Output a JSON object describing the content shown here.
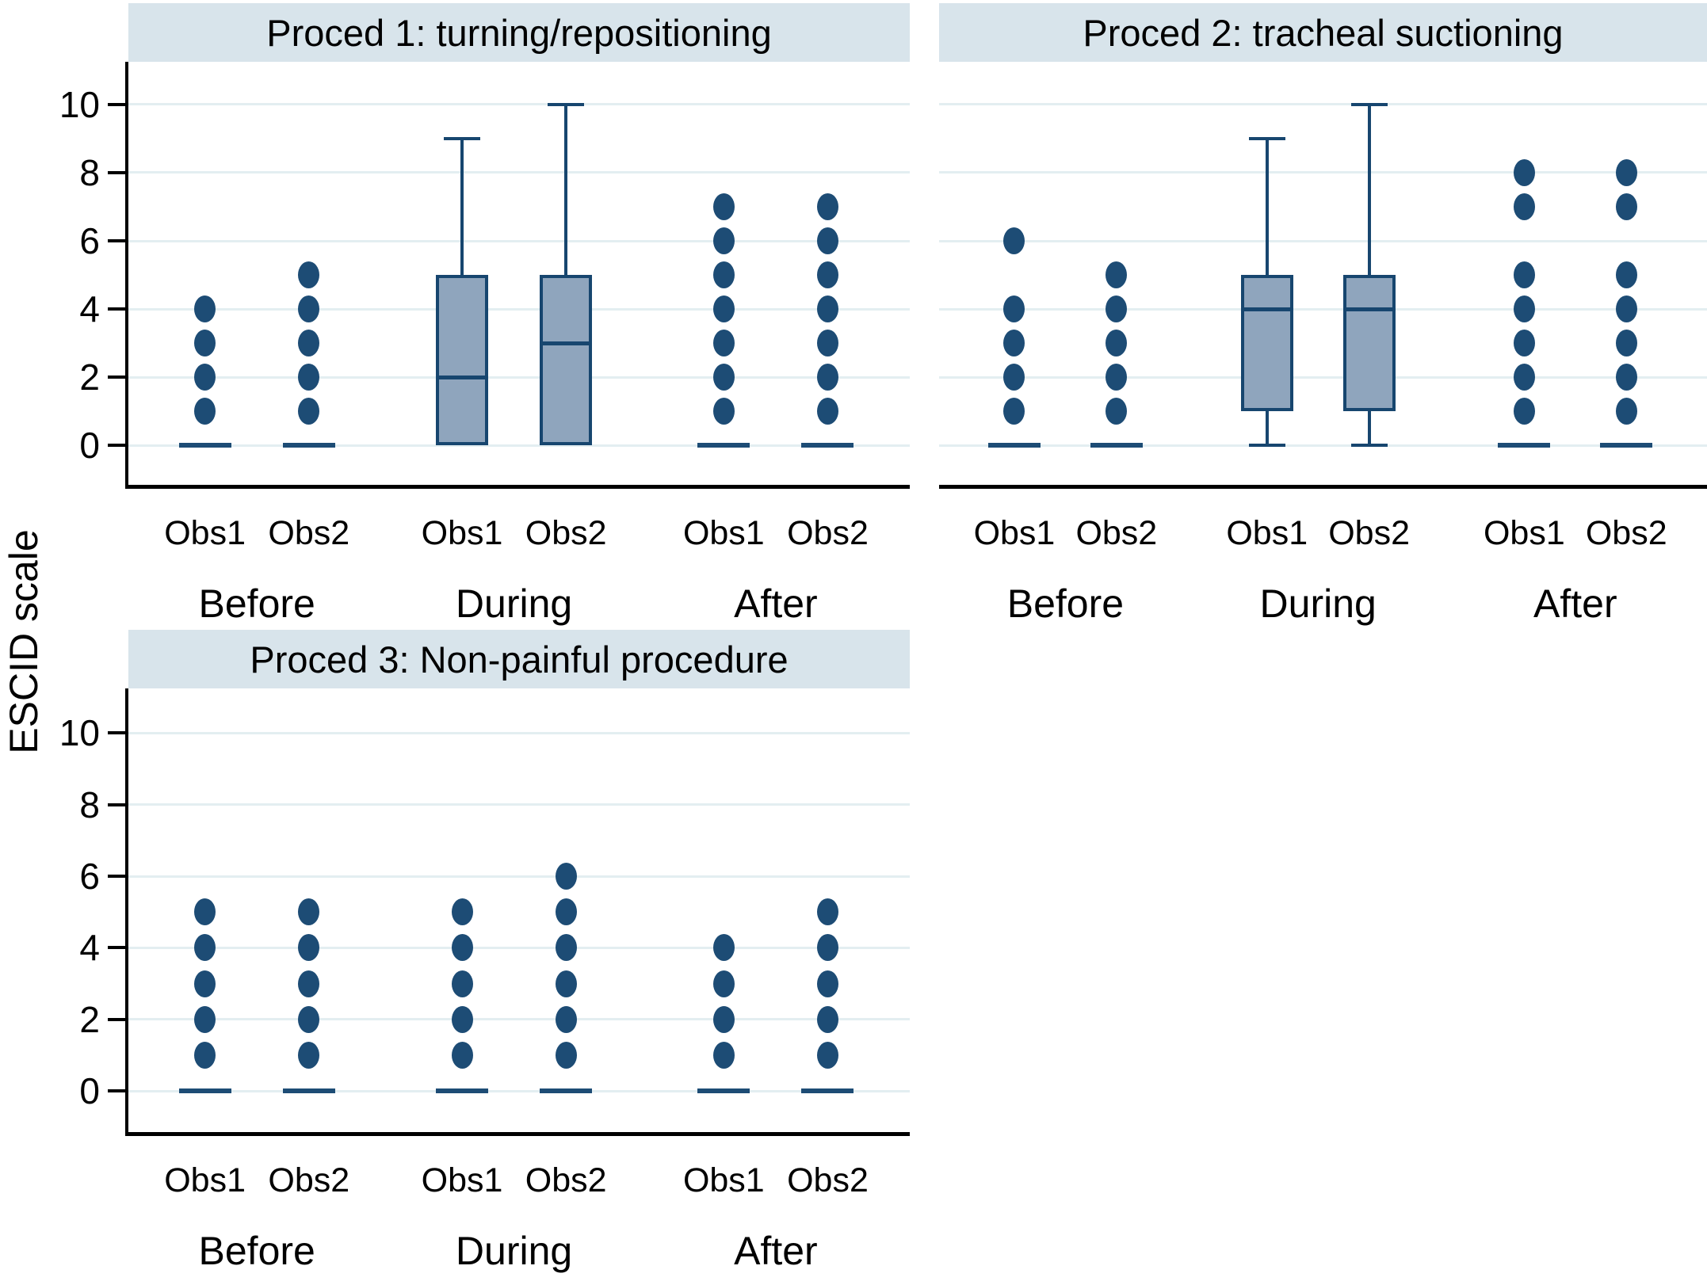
{
  "chart_data": {
    "type": "grouped_boxplot",
    "ylabel": "ESCID scale",
    "yticks": [
      0,
      2,
      4,
      6,
      8,
      10
    ],
    "ylim": [
      -1.15,
      11.25
    ],
    "grid": true,
    "groups": [
      "Before",
      "During",
      "After"
    ],
    "observers": [
      "Obs1",
      "Obs2"
    ],
    "panels": [
      {
        "title": "Proced 1: turning/repositioning",
        "series": [
          {
            "group": "Before",
            "obs": "Obs1",
            "kind": "points",
            "points": [
              1,
              2,
              3,
              4
            ],
            "median": 0
          },
          {
            "group": "Before",
            "obs": "Obs2",
            "kind": "points",
            "points": [
              1,
              2,
              3,
              4,
              5
            ],
            "median": 0
          },
          {
            "group": "During",
            "obs": "Obs1",
            "kind": "box",
            "q1": 0,
            "median": 2,
            "q3": 5,
            "whisker_low": null,
            "whisker_high": 9
          },
          {
            "group": "During",
            "obs": "Obs2",
            "kind": "box",
            "q1": 0,
            "median": 3,
            "q3": 5,
            "whisker_low": null,
            "whisker_high": 10
          },
          {
            "group": "After",
            "obs": "Obs1",
            "kind": "points",
            "points": [
              1,
              2,
              3,
              4,
              5,
              6,
              7
            ],
            "median": 0
          },
          {
            "group": "After",
            "obs": "Obs2",
            "kind": "points",
            "points": [
              1,
              2,
              3,
              4,
              5,
              6,
              7
            ],
            "median": 0
          }
        ]
      },
      {
        "title": "Proced 2: tracheal suctioning",
        "series": [
          {
            "group": "Before",
            "obs": "Obs1",
            "kind": "points",
            "points": [
              1,
              2,
              3,
              4,
              6
            ],
            "median": 0
          },
          {
            "group": "Before",
            "obs": "Obs2",
            "kind": "points",
            "points": [
              1,
              2,
              3,
              4,
              5
            ],
            "median": 0
          },
          {
            "group": "During",
            "obs": "Obs1",
            "kind": "box",
            "q1": 1,
            "median": 4,
            "q3": 5,
            "whisker_low": 0,
            "whisker_high": 9
          },
          {
            "group": "During",
            "obs": "Obs2",
            "kind": "box",
            "q1": 1,
            "median": 4,
            "q3": 5,
            "whisker_low": 0,
            "whisker_high": 10
          },
          {
            "group": "After",
            "obs": "Obs1",
            "kind": "points",
            "points": [
              1,
              2,
              3,
              4,
              5,
              7,
              8
            ],
            "median": 0
          },
          {
            "group": "After",
            "obs": "Obs2",
            "kind": "points",
            "points": [
              1,
              2,
              3,
              4,
              5,
              7,
              8
            ],
            "median": 0
          }
        ]
      },
      {
        "title": "Proced 3: Non-painful procedure",
        "series": [
          {
            "group": "Before",
            "obs": "Obs1",
            "kind": "points",
            "points": [
              1,
              2,
              3,
              4,
              5
            ],
            "median": 0
          },
          {
            "group": "Before",
            "obs": "Obs2",
            "kind": "points",
            "points": [
              1,
              2,
              3,
              4,
              5
            ],
            "median": 0
          },
          {
            "group": "During",
            "obs": "Obs1",
            "kind": "points",
            "points": [
              1,
              2,
              3,
              4,
              5
            ],
            "median": 0
          },
          {
            "group": "During",
            "obs": "Obs2",
            "kind": "points",
            "points": [
              1,
              2,
              3,
              4,
              5,
              6
            ],
            "median": 0
          },
          {
            "group": "After",
            "obs": "Obs1",
            "kind": "points",
            "points": [
              1,
              2,
              3,
              4
            ],
            "median": 0
          },
          {
            "group": "After",
            "obs": "Obs2",
            "kind": "points",
            "points": [
              1,
              2,
              3,
              4,
              5
            ],
            "median": 0
          }
        ]
      }
    ],
    "colors": {
      "marker": "#1d4c75",
      "box_fill": "#8fa5bd",
      "box_border": "#17466f",
      "header_bg": "#d8e4eb",
      "gridline": "#e3eef1",
      "axis": "#000000",
      "background": "#ffffff"
    },
    "layout": {
      "column_fractions": [
        0.098,
        0.231,
        0.427,
        0.56,
        0.762,
        0.895
      ],
      "group_fractions": [
        0.1645,
        0.4935,
        0.8285
      ],
      "legend": "none"
    }
  }
}
